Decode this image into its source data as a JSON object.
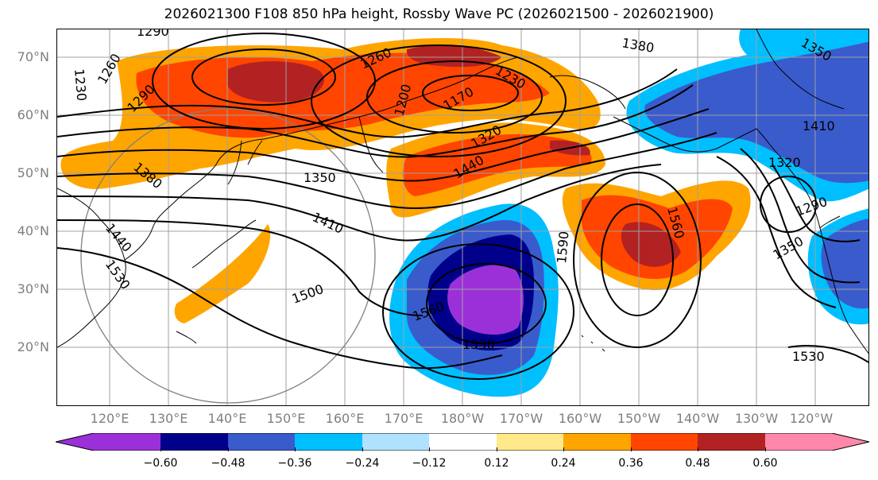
{
  "title": "2026021300 F108 850 hPa height, Rossby Wave PC (2026021500 - 2026021900)",
  "latitude_labels": [
    "70°N",
    "60°N",
    "50°N",
    "40°N",
    "30°N",
    "20°N"
  ],
  "longitude_labels": [
    "120°E",
    "130°E",
    "140°E",
    "150°E",
    "160°E",
    "170°E",
    "180°W",
    "170°W",
    "160°W",
    "150°W",
    "140°W",
    "130°W",
    "120°W"
  ],
  "contour_labels": [
    "1290",
    "1230",
    "1260",
    "1290",
    "1260",
    "1230",
    "1200",
    "1170",
    "1380",
    "1350",
    "1320",
    "1440",
    "1380",
    "1350",
    "1410",
    "1410",
    "1440",
    "1530",
    "1500",
    "1560",
    "1530",
    "1590",
    "1560",
    "1320",
    "1290",
    "1350",
    "1530"
  ],
  "colorbar": {
    "tick_labels": [
      "−0.60",
      "−0.48",
      "−0.36",
      "−0.24",
      "−0.12",
      "0.12",
      "0.24",
      "0.36",
      "0.48",
      "0.60"
    ],
    "colors": [
      "#9b30d9",
      "#00008b",
      "#3a5bcc",
      "#00bfff",
      "#b0e2ff",
      "#ffffff",
      "#ffe98a",
      "#ffa500",
      "#ff4500",
      "#b22222",
      "#ff88aa"
    ]
  }
}
